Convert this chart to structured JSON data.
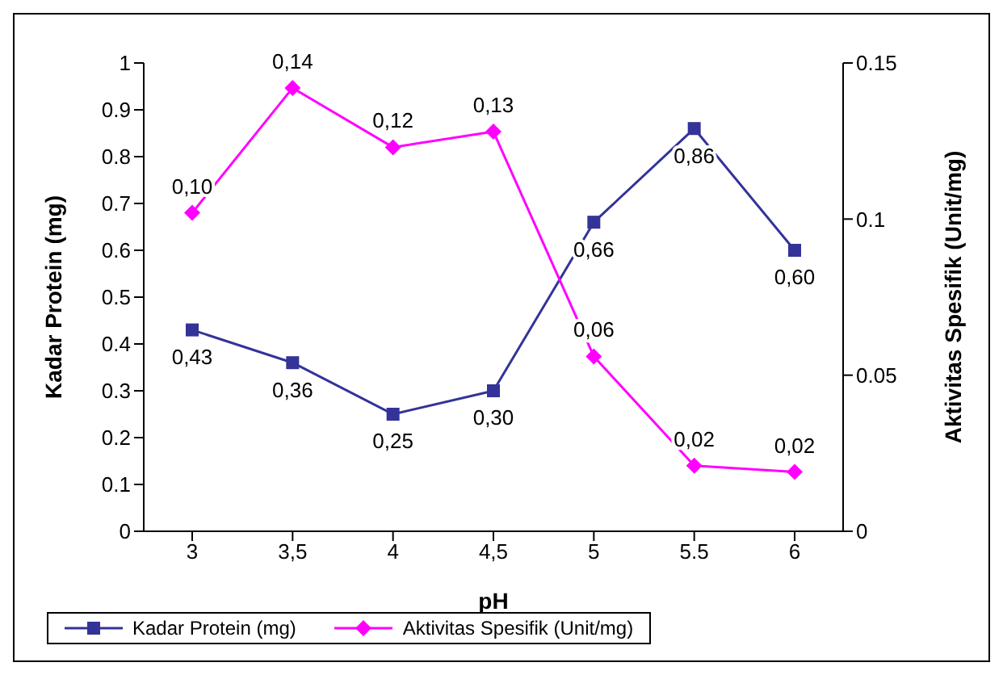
{
  "chart_data": {
    "type": "line",
    "xlabel": "pH",
    "ylabel": "Kadar Protein (mg)",
    "y2label": "Aktivitas Spesifik (Unit/mg)",
    "categories": [
      "3",
      "3,5",
      "4",
      "4,5",
      "5",
      "5.5",
      "6"
    ],
    "series": [
      {
        "name": "Kadar Protein (mg)",
        "color": "#333399",
        "marker": "square",
        "values": [
          0.43,
          0.36,
          0.25,
          0.3,
          0.66,
          0.86,
          0.6
        ],
        "value_labels": [
          "0,43",
          "0,36",
          "0,25",
          "0,30",
          "0,66",
          "0,86",
          "0,60"
        ]
      },
      {
        "name": "Aktivitas Spesifik (Unit/mg)",
        "color": "#ff00ff",
        "marker": "diamond",
        "axis": "y2",
        "values": [
          0.102,
          0.142,
          0.123,
          0.128,
          0.056,
          0.021,
          0.019
        ],
        "value_labels": [
          "0,10",
          "0,14",
          "0,12",
          "0,13",
          "0,06",
          "0,02",
          "0,02"
        ]
      }
    ],
    "ylim": [
      0,
      1
    ],
    "yticks": [
      0,
      0.1,
      0.2,
      0.3,
      0.4,
      0.5,
      0.6,
      0.7,
      0.8,
      0.9,
      1
    ],
    "y2lim": [
      0,
      0.15
    ],
    "y2ticks": [
      0,
      0.05,
      0.1,
      0.15
    ],
    "grid": false,
    "legend": "bottom"
  }
}
